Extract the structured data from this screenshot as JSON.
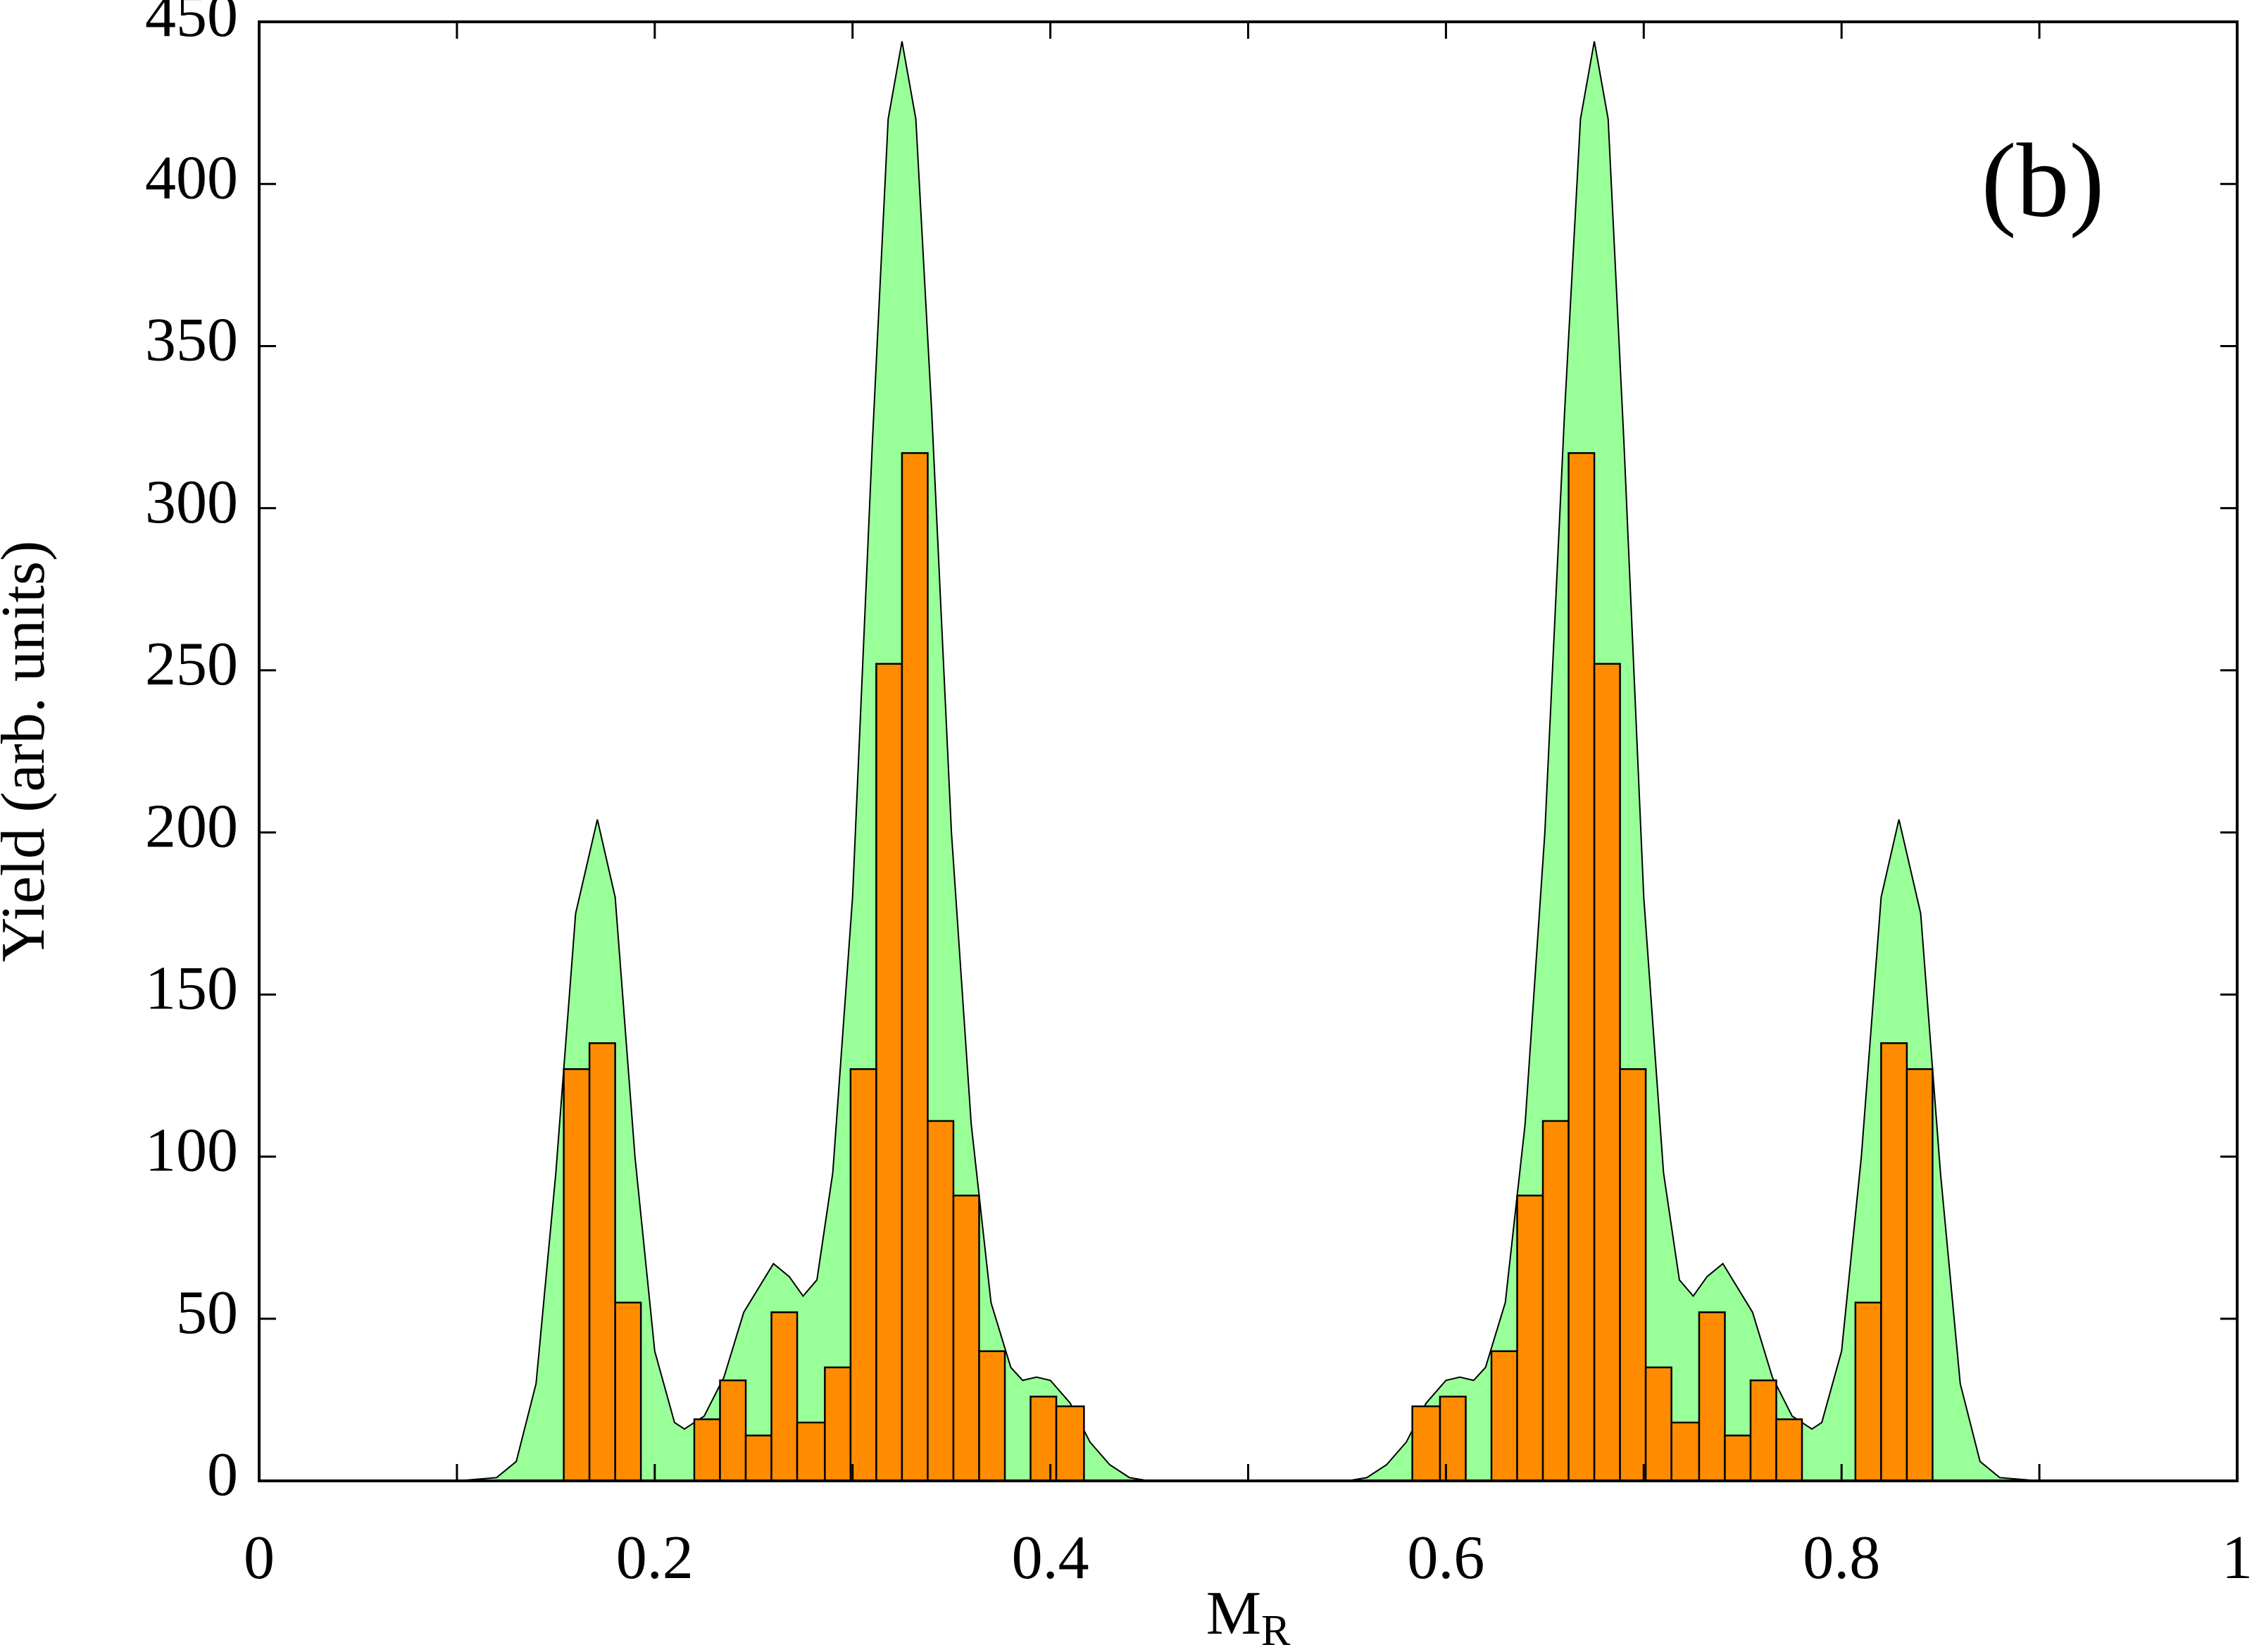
{
  "chart_data": {
    "type": "histogram",
    "xlabel": "M",
    "xlabel_sub": "R",
    "ylabel": "Yield (arb. units)",
    "annotation": "(b)",
    "xlim": [
      0,
      1
    ],
    "xticks": [
      0,
      0.2,
      0.4,
      0.6,
      0.8,
      1
    ],
    "xminorticks": [
      0.1,
      0.3,
      0.5,
      0.7,
      0.9
    ],
    "ylim": [
      0,
      450
    ],
    "yticks": [
      0,
      50,
      100,
      150,
      200,
      250,
      300,
      350,
      400,
      450
    ],
    "color": "#ff8c00",
    "bins": [
      0.154,
      0.167,
      0.18,
      0.193,
      0.206,
      0.22,
      0.233,
      0.246,
      0.259,
      0.272,
      0.286,
      0.299,
      0.312,
      0.325,
      0.338,
      0.351,
      0.364,
      0.377,
      0.39,
      0.403,
      0.417,
      0.583,
      0.597,
      0.61,
      0.623,
      0.636,
      0.649,
      0.662,
      0.675,
      0.688,
      0.701,
      0.714,
      0.728,
      0.741,
      0.754,
      0.767,
      0.78,
      0.794,
      0.807,
      0.82,
      0.833,
      0.846
    ],
    "counts": [
      127,
      135,
      55,
      0,
      0,
      19,
      31,
      14,
      52,
      18,
      35,
      127,
      252,
      317,
      111,
      88,
      40,
      0,
      26,
      23,
      0,
      23,
      26,
      0,
      40,
      88,
      111,
      317,
      252,
      127,
      35,
      18,
      52,
      14,
      31,
      19,
      0,
      0,
      55,
      135,
      127
    ],
    "overlay": {
      "type": "area",
      "color": "#99ff99",
      "x": [
        0.1,
        0.12,
        0.13,
        0.14,
        0.15,
        0.16,
        0.171,
        0.18,
        0.19,
        0.2,
        0.21,
        0.215,
        0.225,
        0.235,
        0.245,
        0.26,
        0.268,
        0.275,
        0.282,
        0.29,
        0.3,
        0.31,
        0.318,
        0.325,
        0.332,
        0.34,
        0.35,
        0.36,
        0.37,
        0.38,
        0.386,
        0.393,
        0.4,
        0.41,
        0.42,
        0.43,
        0.44,
        0.45,
        0.5,
        0.55,
        0.56,
        0.57,
        0.58,
        0.59,
        0.6,
        0.607,
        0.614,
        0.62,
        0.63,
        0.64,
        0.65,
        0.66,
        0.668,
        0.675,
        0.682,
        0.69,
        0.7,
        0.71,
        0.718,
        0.725,
        0.732,
        0.74,
        0.755,
        0.765,
        0.775,
        0.785,
        0.79,
        0.8,
        0.81,
        0.82,
        0.829,
        0.84,
        0.85,
        0.86,
        0.87,
        0.88,
        0.9
      ],
      "values": [
        0,
        1,
        6,
        30,
        95,
        175,
        204,
        180,
        100,
        40,
        18,
        16,
        20,
        32,
        52,
        67,
        63,
        57,
        62,
        95,
        180,
        320,
        420,
        444,
        420,
        330,
        200,
        110,
        55,
        35,
        31,
        32,
        31,
        24,
        12,
        5,
        1,
        0,
        0,
        0,
        1,
        5,
        12,
        24,
        31,
        32,
        31,
        35,
        55,
        110,
        200,
        330,
        420,
        444,
        420,
        320,
        180,
        95,
        62,
        57,
        63,
        67,
        52,
        32,
        20,
        16,
        18,
        40,
        100,
        180,
        204,
        175,
        95,
        30,
        6,
        1,
        0
      ]
    }
  }
}
